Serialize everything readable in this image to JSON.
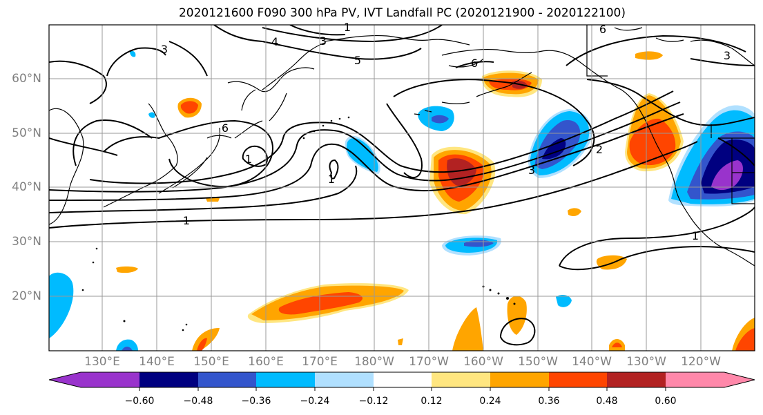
{
  "title": "2020121600 F090 300 hPa PV, IVT Landfall PC (2020121900 - 2020122100)",
  "lat_labels": [
    "60°N",
    "50°N",
    "40°N",
    "30°N",
    "20°N"
  ],
  "lon_labels": [
    "130°E",
    "140°E",
    "150°E",
    "160°E",
    "170°E",
    "180°W",
    "170°W",
    "160°W",
    "150°W",
    "140°W",
    "130°W",
    "120°W"
  ],
  "colorbar": {
    "ticks": [
      "−0.60",
      "−0.48",
      "−0.36",
      "−0.24",
      "−0.12",
      "0.12",
      "0.24",
      "0.36",
      "0.48",
      "0.60"
    ],
    "colors": [
      "#9933cc",
      "#000080",
      "#3355cc",
      "#00bbff",
      "#b0e0ff",
      "#ffffff",
      "#ffe680",
      "#ffa500",
      "#ff4500",
      "#b22222",
      "#ff88aa"
    ]
  },
  "contour_labels": [
    "1",
    "1",
    "1",
    "1",
    "2",
    "3",
    "3",
    "3",
    "3",
    "4",
    "5",
    "6",
    "6",
    "6",
    "1"
  ]
}
